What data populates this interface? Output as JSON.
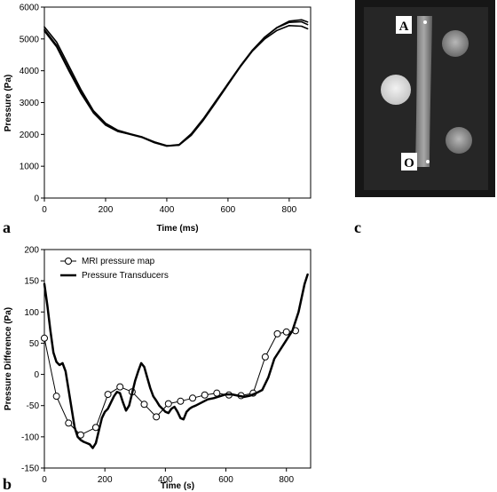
{
  "panel_labels": {
    "a": "a",
    "b": "b",
    "c": "c"
  },
  "chart_data": [
    {
      "type": "line",
      "panel": "a",
      "xlabel": "Time (ms)",
      "ylabel": "Pressure (Pa)",
      "xlim": [
        0,
        870
      ],
      "ylim": [
        0,
        6000
      ],
      "xticks": [
        "0",
        "200",
        "400",
        "600",
        "800"
      ],
      "yticks": [
        "0",
        "1000",
        "2000",
        "3000",
        "4000",
        "5000",
        "6000"
      ],
      "series": [
        {
          "x": [
            0,
            40,
            80,
            120,
            160,
            200,
            240,
            280,
            320,
            360,
            400,
            440,
            480,
            520,
            560,
            600,
            640,
            680,
            720,
            760,
            800,
            840,
            860
          ],
          "values": [
            5380,
            4900,
            4150,
            3400,
            2750,
            2350,
            2130,
            2020,
            1920,
            1760,
            1640,
            1680,
            2020,
            2500,
            3050,
            3600,
            4150,
            4650,
            5050,
            5350,
            5520,
            5540,
            5450
          ]
        },
        {
          "x": [
            0,
            40,
            80,
            120,
            160,
            200,
            240,
            280,
            320,
            360,
            400,
            440,
            480,
            520,
            560,
            600,
            640,
            680,
            720,
            760,
            800,
            840,
            860
          ],
          "values": [
            5300,
            4800,
            4050,
            3320,
            2700,
            2310,
            2100,
            2000,
            1900,
            1740,
            1630,
            1660,
            1990,
            2470,
            3020,
            3570,
            4120,
            4620,
            5000,
            5270,
            5420,
            5400,
            5320
          ]
        },
        {
          "x": [
            0,
            40,
            80,
            120,
            160,
            200,
            240,
            280,
            320,
            360,
            400,
            440,
            480,
            520,
            560,
            600,
            640,
            680,
            720,
            760,
            800,
            840,
            860
          ],
          "values": [
            5250,
            4750,
            4000,
            3280,
            2680,
            2290,
            2090,
            2010,
            1910,
            1760,
            1650,
            1660,
            1970,
            2450,
            3000,
            3560,
            4130,
            4650,
            5060,
            5360,
            5560,
            5600,
            5530
          ]
        }
      ]
    },
    {
      "type": "line",
      "panel": "b",
      "xlabel": "Time (s)",
      "ylabel": "Pressure Difference (Pa)",
      "xlim": [
        0,
        880
      ],
      "ylim": [
        -150,
        200
      ],
      "xticks": [
        "0",
        "200",
        "400",
        "600",
        "800"
      ],
      "yticks": [
        "-150",
        "-100",
        "-50",
        "0",
        "50",
        "100",
        "150",
        "200"
      ],
      "legend": "top-left",
      "series": [
        {
          "name": "MRI pressure map",
          "x": [
            0,
            40,
            80,
            120,
            170,
            210,
            250,
            290,
            330,
            370,
            410,
            450,
            490,
            530,
            570,
            610,
            650,
            690,
            730,
            770,
            800,
            830
          ],
          "values": [
            58,
            -35,
            -78,
            -97,
            -85,
            -32,
            -20,
            -28,
            -48,
            -68,
            -47,
            -43,
            -38,
            -33,
            -30,
            -33,
            -34,
            -30,
            28,
            65,
            68,
            70
          ]
        },
        {
          "name": "Pressure Transducers",
          "x": [
            0,
            10,
            20,
            30,
            40,
            50,
            60,
            70,
            80,
            90,
            100,
            110,
            120,
            130,
            140,
            150,
            160,
            170,
            180,
            190,
            200,
            210,
            220,
            230,
            240,
            250,
            260,
            270,
            280,
            290,
            300,
            310,
            320,
            330,
            340,
            350,
            360,
            370,
            380,
            390,
            400,
            410,
            420,
            430,
            440,
            450,
            460,
            470,
            480,
            490,
            500,
            520,
            540,
            560,
            580,
            600,
            620,
            640,
            660,
            680,
            700,
            720,
            740,
            760,
            780,
            800,
            820,
            840,
            860,
            870
          ],
          "values": [
            145,
            110,
            70,
            35,
            20,
            15,
            18,
            5,
            -25,
            -55,
            -85,
            -100,
            -105,
            -108,
            -110,
            -112,
            -118,
            -110,
            -90,
            -70,
            -60,
            -55,
            -45,
            -35,
            -28,
            -30,
            -45,
            -58,
            -50,
            -30,
            -10,
            5,
            18,
            12,
            -5,
            -22,
            -35,
            -42,
            -50,
            -55,
            -60,
            -62,
            -55,
            -52,
            -60,
            -70,
            -72,
            -60,
            -55,
            -52,
            -50,
            -45,
            -40,
            -38,
            -35,
            -32,
            -32,
            -34,
            -36,
            -34,
            -30,
            -25,
            -5,
            25,
            40,
            55,
            70,
            100,
            145,
            160
          ]
        }
      ]
    }
  ],
  "mri_image": {
    "markers": {
      "top": "A",
      "bottom": "O"
    }
  }
}
